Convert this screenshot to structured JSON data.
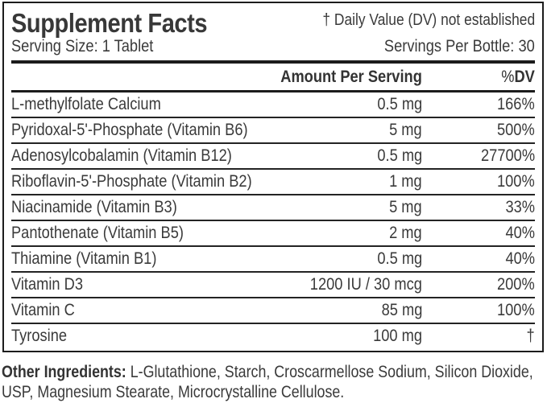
{
  "label": {
    "title": "Supplement Facts",
    "footnote": "† Daily Value (DV) not established",
    "serving_size": "Serving Size: 1 Tablet",
    "servings_per_bottle": "Servings Per Bottle: 30",
    "columns": {
      "amount": "Amount Per Serving",
      "dv_percent_symbol": "%",
      "dv_text": "DV"
    },
    "rows": [
      {
        "name": "L-methylfolate Calcium",
        "amount": "0.5 mg",
        "dv": "166%"
      },
      {
        "name": "Pyridoxal-5'-Phosphate (Vitamin B6)",
        "amount": "5 mg",
        "dv": "500%"
      },
      {
        "name": "Adenosylcobalamin (Vitamin B12)",
        "amount": "0.5 mg",
        "dv": "27700%"
      },
      {
        "name": "Riboflavin-5'-Phosphate (Vitamin B2)",
        "amount": "1 mg",
        "dv": "100%"
      },
      {
        "name": "Niacinamide (Vitamin B3)",
        "amount": "5 mg",
        "dv": "33%"
      },
      {
        "name": "Pantothenate (Vitamin B5)",
        "amount": "2 mg",
        "dv": "40%"
      },
      {
        "name": "Thiamine (Vitamin B1)",
        "amount": "0.5 mg",
        "dv": "40%"
      },
      {
        "name": "Vitamin D3",
        "amount": "1200 IU / 30 mcg",
        "dv": "200%"
      },
      {
        "name": "Vitamin C",
        "amount": "85 mg",
        "dv": "100%"
      },
      {
        "name": "Tyrosine",
        "amount": "100 mg",
        "dv": "†"
      }
    ],
    "other_ingredients_label": "Other Ingredients:",
    "other_ingredients": "L-Glutathione, Starch, Croscarmellose Sodium, Silicon Dioxide, USP, Magnesium Stearate, Microcrystalline Cellulose.",
    "colors": {
      "text": "#3a3a3a",
      "border": "#1c1c1c",
      "background": "#ffffff"
    }
  }
}
